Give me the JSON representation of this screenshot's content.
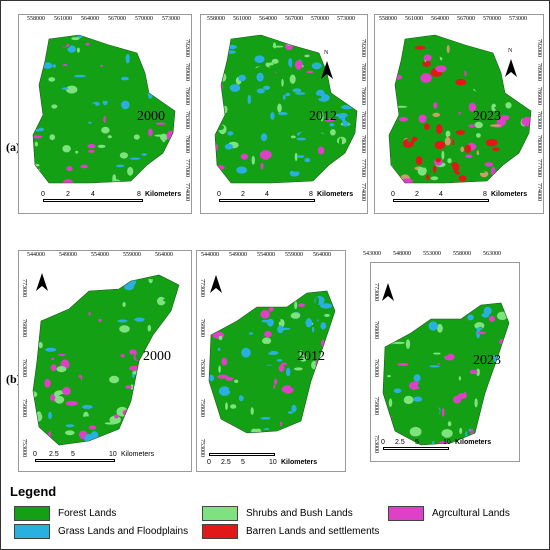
{
  "row_labels": [
    "(a)",
    "(b)"
  ],
  "row_a": {
    "north_label": "N",
    "scale": {
      "ticks": [
        "0",
        "2",
        "4",
        "8"
      ],
      "unit": "Kilometers"
    },
    "panels": [
      {
        "year": "2000",
        "x_ticks": [
          "558000",
          "561000",
          "564000",
          "567000",
          "570000",
          "573000"
        ],
        "y_ticks": [
          "792000",
          "789000",
          "786000",
          "783000",
          "780000",
          "777000",
          "774000"
        ]
      },
      {
        "year": "2012",
        "x_ticks": [
          "558000",
          "561000",
          "564000",
          "567000",
          "570000",
          "573000"
        ],
        "y_ticks": [
          "792000",
          "789000",
          "786000",
          "783000",
          "780000",
          "777000",
          "774000"
        ]
      },
      {
        "year": "2023",
        "x_ticks": [
          "558000",
          "561000",
          "564000",
          "567000",
          "570000",
          "573000"
        ],
        "y_ticks": [
          "792000",
          "789000",
          "786000",
          "783000",
          "780000",
          "777000",
          "774000"
        ]
      }
    ]
  },
  "row_b": {
    "panels": [
      {
        "year": "2000",
        "x_ticks": [
          "544000",
          "549000",
          "554000",
          "559000",
          "564000"
        ],
        "y_ticks": [
          "773000",
          "768000",
          "763000",
          "758000",
          "753000"
        ],
        "scale": {
          "ticks": [
            "0",
            "2.5",
            "5",
            "10"
          ],
          "unit": "Kilometers"
        }
      },
      {
        "year": "2012",
        "x_ticks": [
          "544000",
          "549000",
          "554000",
          "559000",
          "564000"
        ],
        "y_ticks": [
          "773000",
          "768000",
          "763000",
          "758000",
          "753000"
        ],
        "scale": {
          "ticks": [
            "0",
            "2.5",
            "5",
            "10"
          ],
          "unit": "Kilometers"
        }
      },
      {
        "year": "2023",
        "x_ticks": [
          "543000",
          "548000",
          "553000",
          "558000",
          "563000"
        ],
        "y_ticks": [
          "773000",
          "768000",
          "763000",
          "758000",
          "753000"
        ],
        "scale": {
          "ticks": [
            "0",
            "2.5",
            "5",
            "10"
          ],
          "unit": "Kilometers"
        }
      }
    ]
  },
  "legend": {
    "title": "Legend",
    "items": [
      {
        "label": "Forest Lands",
        "color": "#14a014"
      },
      {
        "label": "Shrubs and Bush Lands",
        "color": "#7ee27e"
      },
      {
        "label": "Agrcultural Lands",
        "color": "#e040c8"
      },
      {
        "label": "Grass Lands and Floodplains",
        "color": "#2ab0e0"
      },
      {
        "label": "Barren Lands and settlements",
        "color": "#e01818"
      }
    ]
  },
  "colors": {
    "forest": "#14a014",
    "shrub": "#7ee27e",
    "agri": "#e040c8",
    "grass": "#2ab0e0",
    "barren": "#e01818",
    "barren_2023": "#c9a06a"
  }
}
